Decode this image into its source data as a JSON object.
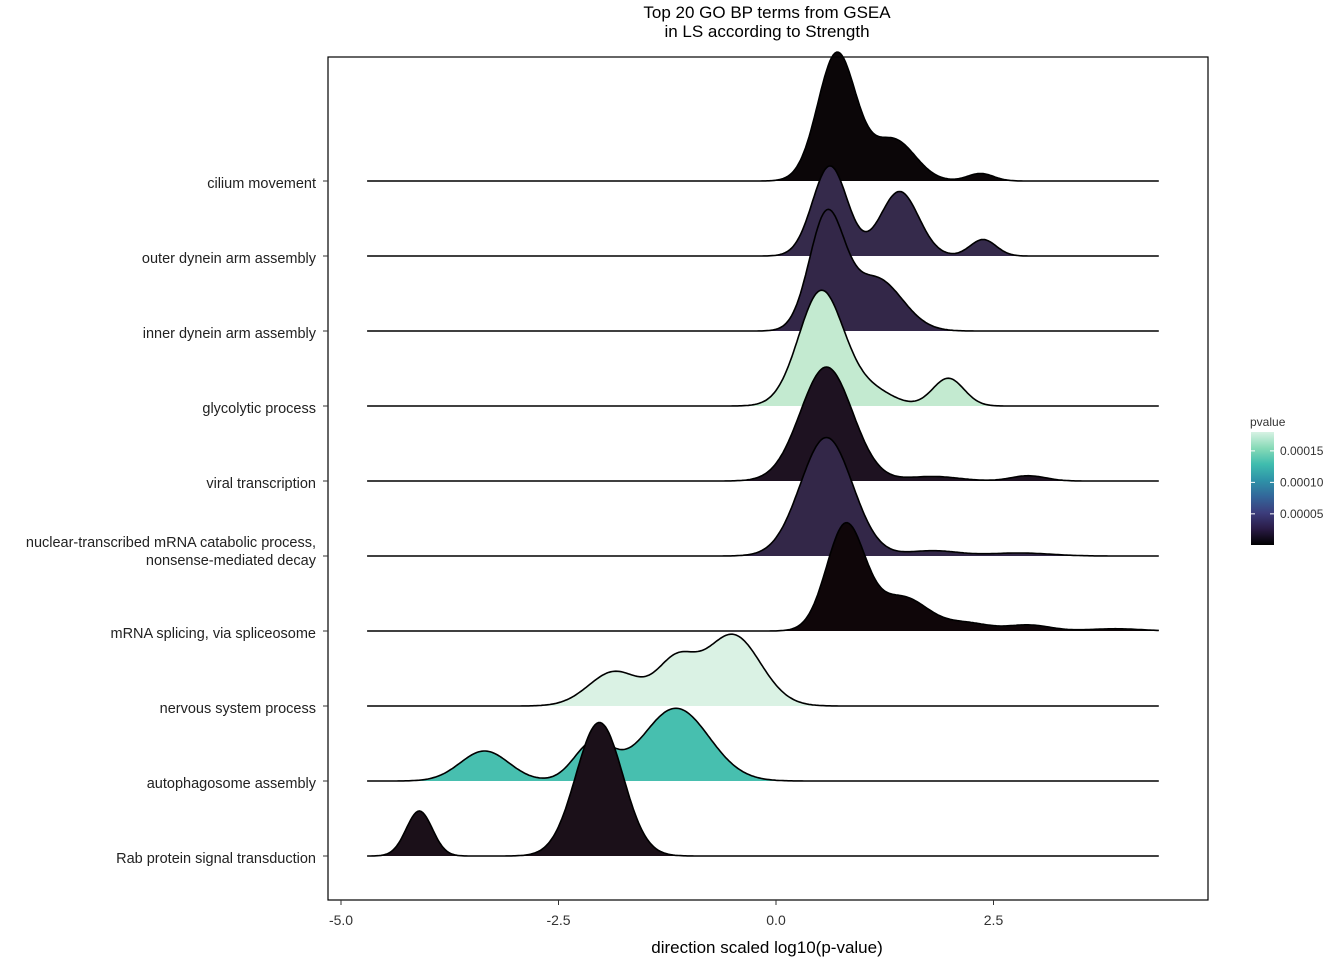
{
  "chart_data": {
    "type": "ridgeline",
    "title_lines": [
      "Top 20 GO BP terms from GSEA",
      "in LS according to Strength"
    ],
    "xlabel": "direction scaled log10(p-value)",
    "xlim": [
      -5.0,
      4.8
    ],
    "xticks": [
      -5.0,
      -2.5,
      0.0,
      2.5
    ],
    "xtick_labels": [
      "-5.0",
      "-2.5",
      "0.0",
      "2.5"
    ],
    "legend": {
      "title": "pvalue",
      "placement": "right",
      "ticks": [
        5e-05,
        0.0001,
        0.00015
      ],
      "tick_labels": [
        "0.00005",
        "0.00010",
        "0.00015"
      ],
      "range": [
        5e-07,
        0.00018
      ],
      "palette": [
        "#000000",
        "#2a1b46",
        "#3c3d7c",
        "#33669a",
        "#2e92a8",
        "#3fbcae",
        "#87dab7",
        "#d7f2e3"
      ]
    },
    "series": [
      {
        "name": "Rab protein signal transduction",
        "pvalue": 6e-06,
        "color": "#1b1019",
        "peaks": [
          {
            "x": -4.1,
            "h": 0.6,
            "s": 0.15
          },
          {
            "x": -2.03,
            "h": 1.78,
            "s": 0.27
          }
        ],
        "range": [
          -4.7,
          4.4
        ]
      },
      {
        "name": "autophagosome assembly",
        "pvalue": 0.00013,
        "color": "#47bfaf",
        "peaks": [
          {
            "x": -3.35,
            "h": 0.4,
            "s": 0.28
          },
          {
            "x": -2.1,
            "h": 0.5,
            "s": 0.22
          },
          {
            "x": -1.15,
            "h": 0.97,
            "s": 0.38
          }
        ],
        "range": [
          -4.7,
          4.4
        ]
      },
      {
        "name": "nervous system process",
        "pvalue": 0.00018,
        "color": "#daf2e4",
        "peaks": [
          {
            "x": -1.85,
            "h": 0.46,
            "s": 0.3
          },
          {
            "x": -1.15,
            "h": 0.55,
            "s": 0.22
          },
          {
            "x": -0.5,
            "h": 0.95,
            "s": 0.32
          }
        ],
        "range": [
          -4.7,
          4.4
        ]
      },
      {
        "name": "mRNA splicing, via spliceosome",
        "pvalue": 1e-06,
        "color": "#0f0609",
        "peaks": [
          {
            "x": 0.8,
            "h": 1.4,
            "s": 0.22
          },
          {
            "x": 1.45,
            "h": 0.45,
            "s": 0.3
          },
          {
            "x": 2.2,
            "h": 0.1,
            "s": 0.25
          },
          {
            "x": 2.9,
            "h": 0.08,
            "s": 0.25
          },
          {
            "x": 3.9,
            "h": 0.03,
            "s": 0.3
          }
        ],
        "range": [
          -4.7,
          4.4
        ]
      },
      {
        "name": "nuclear-transcribed mRNA catabolic process,\nnonsense-mediated decay",
        "pvalue": 2e-05,
        "color": "#332748",
        "peaks": [
          {
            "x": 0.58,
            "h": 1.58,
            "s": 0.3
          },
          {
            "x": 1.8,
            "h": 0.07,
            "s": 0.3
          },
          {
            "x": 2.8,
            "h": 0.04,
            "s": 0.35
          }
        ],
        "range": [
          -4.7,
          4.4
        ]
      },
      {
        "name": "viral transcription",
        "pvalue": 8e-06,
        "color": "#1e1221",
        "peaks": [
          {
            "x": 0.58,
            "h": 1.52,
            "s": 0.3
          },
          {
            "x": 1.8,
            "h": 0.06,
            "s": 0.3
          },
          {
            "x": 2.9,
            "h": 0.07,
            "s": 0.2
          }
        ],
        "range": [
          -4.7,
          4.4
        ]
      },
      {
        "name": "glycolytic process",
        "pvalue": 0.00017,
        "color": "#c3ead0",
        "peaks": [
          {
            "x": 0.52,
            "h": 1.53,
            "s": 0.26
          },
          {
            "x": 1.1,
            "h": 0.2,
            "s": 0.25
          },
          {
            "x": 1.98,
            "h": 0.37,
            "s": 0.18
          }
        ],
        "range": [
          -4.7,
          4.4
        ]
      },
      {
        "name": "inner dynein arm assembly",
        "pvalue": 2e-05,
        "color": "#332748",
        "peaks": [
          {
            "x": 0.58,
            "h": 1.5,
            "s": 0.2
          },
          {
            "x": 1.15,
            "h": 0.7,
            "s": 0.3
          }
        ],
        "range": [
          -4.7,
          4.4
        ]
      },
      {
        "name": "outer dynein arm assembly",
        "pvalue": 2.2e-05,
        "color": "#352a4b",
        "peaks": [
          {
            "x": 0.62,
            "h": 1.2,
            "s": 0.2
          },
          {
            "x": 1.42,
            "h": 0.86,
            "s": 0.22
          },
          {
            "x": 2.38,
            "h": 0.22,
            "s": 0.15
          }
        ],
        "range": [
          -4.7,
          4.4
        ]
      },
      {
        "name": "cilium movement",
        "pvalue": 5e-07,
        "color": "#0b0608",
        "peaks": [
          {
            "x": 0.7,
            "h": 1.7,
            "s": 0.22
          },
          {
            "x": 1.35,
            "h": 0.55,
            "s": 0.25
          },
          {
            "x": 2.35,
            "h": 0.1,
            "s": 0.15
          }
        ],
        "range": [
          -4.7,
          4.4
        ]
      }
    ]
  }
}
